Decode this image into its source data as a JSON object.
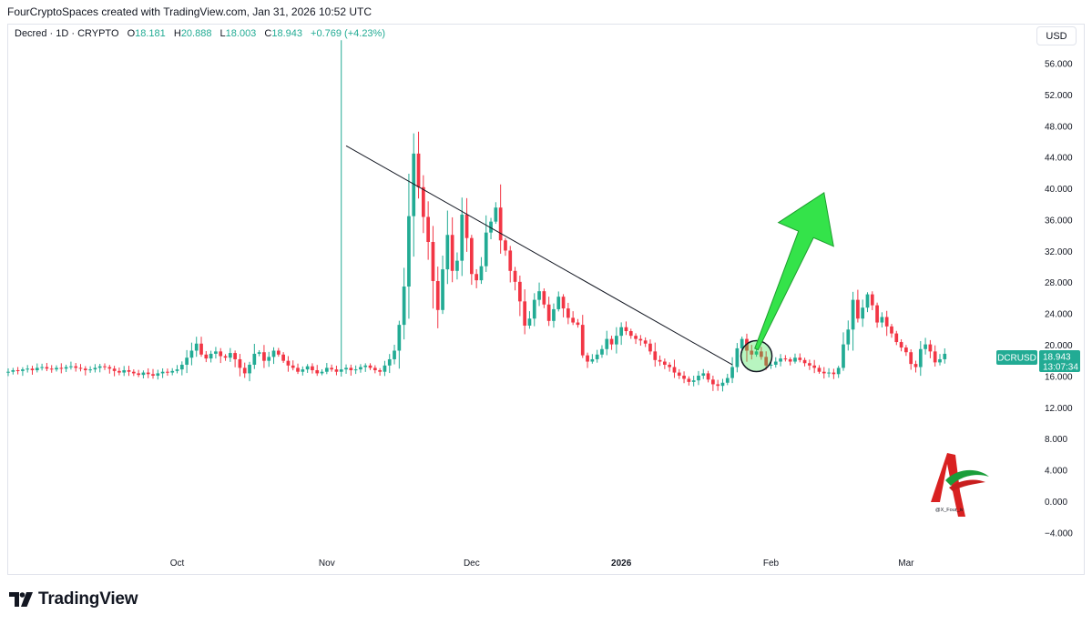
{
  "header": {
    "attribution": "FourCryptoSpaces created with TradingView.com, Jan 31, 2026 10:52 UTC"
  },
  "legend": {
    "symbol": "Decred · 1D · CRYPTO",
    "open_label": "O",
    "open": "18.181",
    "high_label": "H",
    "high": "20.888",
    "low_label": "L",
    "low": "18.003",
    "close_label": "C",
    "close": "18.943",
    "change": "+0.769 (+4.23%)"
  },
  "currency_button": "USD",
  "price_tag": {
    "ticker": "DCRUSD",
    "price": "18.943",
    "countdown": "13:07:34"
  },
  "watermark_handle": "@X_Four_iv",
  "footer": {
    "brand": "TradingView"
  },
  "colors": {
    "up": "#22ab94",
    "down": "#f23645",
    "arrow": "#34e34a",
    "trendline": "#131722"
  },
  "chart_data": {
    "type": "candlestick",
    "symbol": "DCRUSD",
    "interval": "1D",
    "y_ticks": [
      "56.000",
      "52.000",
      "48.000",
      "44.000",
      "40.000",
      "36.000",
      "32.000",
      "28.000",
      "24.000",
      "20.000",
      "16.000",
      "12.000",
      "8.000",
      "4.000",
      "0.000",
      "−4.000"
    ],
    "y_tick_values": [
      56,
      52,
      48,
      44,
      40,
      36,
      32,
      28,
      24,
      20,
      16,
      12,
      8,
      4,
      0,
      -4
    ],
    "ylim": [
      -6,
      61
    ],
    "x_ticks": [
      "Oct",
      "Nov",
      "Dec",
      "2026",
      "Feb",
      "Mar"
    ],
    "x_tick_bold": [
      false,
      false,
      false,
      true,
      false,
      false
    ],
    "x_tick_dates": [
      "2025-10-01",
      "2025-11-01",
      "2025-12-01",
      "2026-01-01",
      "2026-02-01",
      "2026-03-01"
    ],
    "xlim": [
      "2025-08-27",
      "2026-03-28"
    ],
    "approx_daily_closes": [
      16.6,
      16.8,
      16.7,
      16.9,
      17.0,
      16.8,
      17.1,
      17.2,
      17.0,
      16.9,
      17.1,
      17.0,
      17.2,
      17.3,
      17.1,
      17.0,
      16.8,
      16.9,
      17.1,
      17.3,
      17.2,
      17.0,
      16.7,
      16.5,
      16.8,
      16.6,
      16.4,
      16.2,
      16.5,
      16.3,
      16.1,
      16.4,
      16.6,
      16.5,
      16.7,
      16.9,
      17.5,
      18.4,
      19.3,
      20.2,
      18.8,
      18.3,
      18.9,
      19.2,
      18.6,
      18.4,
      19.0,
      18.2,
      17.1,
      16.4,
      17.5,
      18.9,
      19.1,
      18.0,
      18.5,
      19.3,
      18.8,
      18.0,
      17.4,
      17.1,
      16.6,
      16.9,
      17.3,
      16.8,
      16.4,
      16.6,
      17.1,
      16.9,
      16.6,
      16.9,
      17.1,
      16.8,
      16.9,
      17.2,
      17.4,
      17.1,
      16.8,
      16.6,
      17.4,
      18.2,
      19.3,
      22.6,
      27.5,
      36.5,
      44.5,
      40.2,
      36.4,
      33.2,
      28.2,
      24.5,
      29.7,
      34.1,
      29.5,
      30.8,
      36.7,
      33.7,
      29.1,
      28.3,
      30.1,
      34.4,
      35.8,
      37.6,
      33.4,
      32.1,
      29.5,
      28.1,
      25.6,
      22.5,
      23.4,
      25.8,
      26.9,
      25.2,
      23.1,
      24.6,
      26.2,
      24.7,
      23.5,
      22.9,
      22.6,
      18.7,
      17.9,
      18.2,
      18.8,
      19.5,
      20.8,
      20.1,
      21.2,
      22.3,
      21.8,
      21.2,
      20.8,
      20.6,
      20.2,
      19.2,
      18.1,
      17.9,
      17.5,
      17.2,
      16.5,
      16.1,
      15.7,
      15.3,
      15.5,
      16.1,
      16.4,
      15.6,
      15.0,
      14.8,
      15.2,
      15.8,
      17.2,
      19.6,
      20.8,
      19.3,
      18.8,
      19.2,
      18.5,
      17.4,
      17.5,
      17.9,
      18.3,
      18.2,
      17.9,
      18.4,
      18.1,
      17.7,
      17.4,
      17.1,
      16.6,
      16.4,
      16.5,
      16.3,
      17.1,
      20.1,
      22.0,
      25.8,
      23.4,
      24.8,
      26.5,
      25.1,
      22.9,
      23.6,
      22.4,
      21.5,
      20.4,
      19.7,
      19.1,
      17.6,
      17.2,
      19.5,
      20.1,
      19.2,
      17.8,
      18.2,
      18.9
    ],
    "notable": {
      "spike_high": 59.0,
      "spike_date": "2025-11-04",
      "last_close": 18.943
    },
    "annotations": [
      {
        "type": "trendline",
        "from": [
          "2025-11-05",
          45.5
        ],
        "to": [
          "2026-01-24",
          17.5
        ]
      },
      {
        "type": "circle",
        "at": [
          "2026-01-29",
          18.6
        ]
      },
      {
        "type": "arrow",
        "from": [
          "2026-01-29",
          19.5
        ],
        "to": [
          "2026-02-12",
          39.5
        ]
      }
    ]
  }
}
